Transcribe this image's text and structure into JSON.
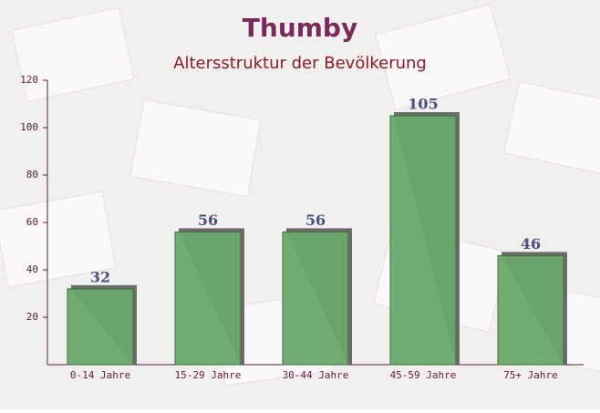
{
  "chart_data": {
    "type": "bar",
    "title": "Thumby",
    "subtitle": "Altersstruktur der Bevölkerung",
    "categories": [
      "0-14 Jahre",
      "15-29 Jahre",
      "30-44 Jahre",
      "45-59 Jahre",
      "75+ Jahre"
    ],
    "values": [
      32,
      56,
      56,
      105,
      46
    ],
    "color": "#6aa86a",
    "ylim": [
      0,
      120
    ],
    "yticks": [
      20,
      40,
      60,
      80,
      100,
      120
    ]
  }
}
